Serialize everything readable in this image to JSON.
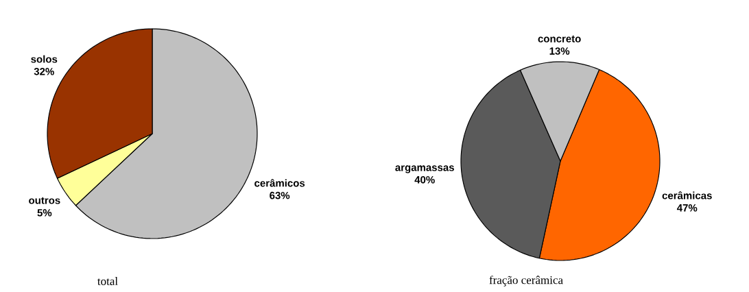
{
  "chart_data": [
    {
      "type": "pie",
      "title": "total",
      "categories": [
        "cerâmicos",
        "outros",
        "solos"
      ],
      "values": [
        63,
        5,
        32
      ],
      "colors": [
        "#c0c0c0",
        "#ffff99",
        "#993300"
      ],
      "value_labels": [
        "63%",
        "5%",
        "32%"
      ]
    },
    {
      "type": "pie",
      "title": "fração cerâmica",
      "categories": [
        "cerâmicas",
        "argamassas",
        "concreto"
      ],
      "values": [
        47,
        40,
        13
      ],
      "colors": [
        "#ff6600",
        "#5a5a5a",
        "#c0c0c0"
      ],
      "value_labels": [
        "47%",
        "40%",
        "13%"
      ]
    }
  ]
}
